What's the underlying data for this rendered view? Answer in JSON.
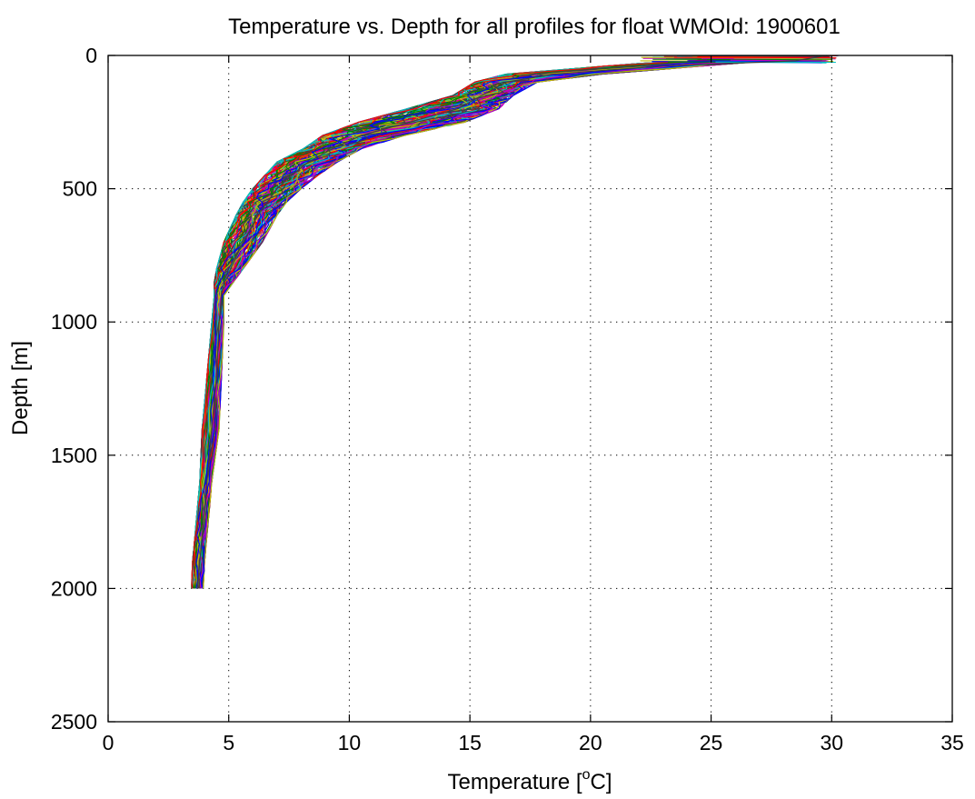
{
  "chart_data": {
    "type": "line",
    "title": "Temperature vs. Depth for all profiles for float WMOId: 1900601",
    "xlabel_main": "Temperature [",
    "xlabel_sup": "o",
    "xlabel_end": "C]",
    "ylabel": "Depth [m]",
    "xlim": [
      0,
      35
    ],
    "ylim": [
      0,
      2500
    ],
    "y_reversed": true,
    "grid": true,
    "grid_style": "dotted",
    "legend": "none",
    "x_ticks": [
      0,
      5,
      10,
      15,
      20,
      25,
      30,
      35
    ],
    "x_tick_labels": [
      "0",
      "5",
      "10",
      "15",
      "20",
      "25",
      "30",
      "35"
    ],
    "y_ticks": [
      0,
      500,
      1000,
      1500,
      2000,
      2500
    ],
    "y_tick_labels": [
      "0",
      "500",
      "1000",
      "1500",
      "2000",
      "2500"
    ],
    "profile_count_approx": 120,
    "series_colors": [
      "#0000ff",
      "#008000",
      "#ff0000",
      "#00bfbf",
      "#bf00bf",
      "#bfbf00",
      "#404040"
    ],
    "representative_profile": {
      "depth": [
        0,
        20,
        40,
        70,
        100,
        150,
        200,
        250,
        300,
        350,
        400,
        450,
        500,
        550,
        600,
        700,
        800,
        850,
        900,
        1000,
        1200,
        1400,
        1500,
        1600,
        1700,
        1800,
        1900,
        2000
      ],
      "temperature": [
        29.8,
        28.5,
        23.0,
        18.5,
        16.5,
        15.5,
        14.5,
        12.5,
        10.5,
        9.3,
        8.3,
        7.6,
        7.0,
        6.6,
        6.2,
        5.6,
        5.0,
        4.8,
        4.7,
        4.6,
        4.5,
        4.3,
        4.2,
        4.1,
        4.0,
        3.9,
        3.8,
        3.7
      ]
    },
    "envelope_min_temperature": [
      28.5,
      22.0,
      16.5,
      15.2,
      14.3,
      12.4,
      10.4,
      8.9,
      8.1,
      7.0,
      6.5,
      6.0,
      5.6,
      5.3,
      4.8,
      4.5,
      4.4,
      4.4,
      4.3,
      4.1,
      3.9,
      3.8,
      3.7,
      3.6,
      3.5,
      3.45
    ],
    "envelope_max_temperature": [
      30.3,
      26.0,
      20.5,
      17.8,
      16.8,
      16.2,
      14.8,
      12.3,
      10.5,
      9.5,
      8.7,
      8.0,
      7.4,
      7.0,
      6.4,
      5.6,
      5.2,
      4.8,
      4.8,
      4.7,
      4.6,
      4.3,
      4.2,
      4.1,
      4.0,
      3.95
    ],
    "envelope_depths": [
      0,
      30,
      70,
      100,
      150,
      200,
      250,
      300,
      350,
      400,
      450,
      500,
      550,
      600,
      700,
      800,
      850,
      900,
      1000,
      1200,
      1400,
      1600,
      1700,
      1800,
      1900,
      2000
    ]
  }
}
